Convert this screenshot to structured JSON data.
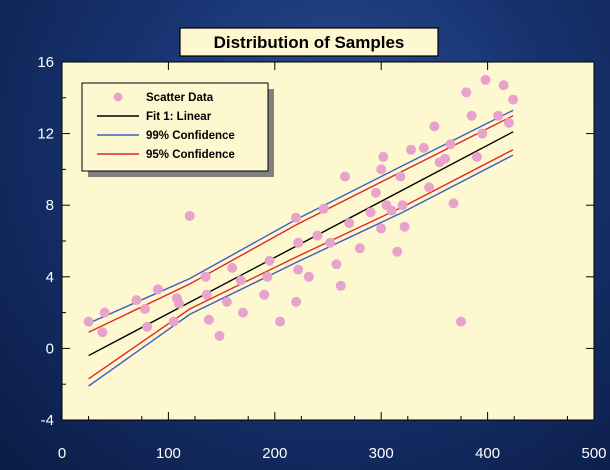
{
  "chart_data": {
    "type": "scatter",
    "title": "Distribution of Samples",
    "xlabel": "",
    "ylabel": "",
    "xlim": [
      0,
      500
    ],
    "ylim": [
      -4,
      16
    ],
    "x_ticks": [
      0,
      100,
      200,
      300,
      400,
      500
    ],
    "y_ticks": [
      -4,
      0,
      4,
      8,
      12,
      16
    ],
    "grid": false,
    "legend_position": "top-left",
    "colors": {
      "plot_bg": "#fdf8d0",
      "points": "#e8a3cc",
      "fit": "#000000",
      "conf99": "#3b5fc0",
      "conf95": "#e02828"
    },
    "series": [
      {
        "name": "Scatter Data",
        "kind": "points",
        "points": [
          [
            25,
            1.5
          ],
          [
            38,
            0.9
          ],
          [
            40,
            2.0
          ],
          [
            70,
            2.7
          ],
          [
            78,
            2.2
          ],
          [
            80,
            1.2
          ],
          [
            90,
            3.3
          ],
          [
            105,
            1.5
          ],
          [
            108,
            2.8
          ],
          [
            110,
            2.5
          ],
          [
            120,
            7.4
          ],
          [
            135,
            4.0
          ],
          [
            136,
            3.0
          ],
          [
            138,
            1.6
          ],
          [
            148,
            0.7
          ],
          [
            155,
            2.6
          ],
          [
            160,
            4.5
          ],
          [
            168,
            3.8
          ],
          [
            170,
            2.0
          ],
          [
            190,
            3.0
          ],
          [
            193,
            4.0
          ],
          [
            195,
            4.9
          ],
          [
            205,
            1.5
          ],
          [
            220,
            7.3
          ],
          [
            220,
            2.6
          ],
          [
            222,
            4.4
          ],
          [
            222,
            5.9
          ],
          [
            232,
            4.0
          ],
          [
            240,
            6.3
          ],
          [
            246,
            7.8
          ],
          [
            252,
            5.9
          ],
          [
            258,
            4.7
          ],
          [
            262,
            3.5
          ],
          [
            266,
            9.6
          ],
          [
            270,
            7.0
          ],
          [
            280,
            5.6
          ],
          [
            290,
            7.6
          ],
          [
            295,
            8.7
          ],
          [
            300,
            10.0
          ],
          [
            300,
            6.7
          ],
          [
            302,
            10.7
          ],
          [
            305,
            8.0
          ],
          [
            310,
            7.7
          ],
          [
            315,
            5.4
          ],
          [
            318,
            9.6
          ],
          [
            320,
            8.0
          ],
          [
            322,
            6.8
          ],
          [
            328,
            11.1
          ],
          [
            340,
            11.2
          ],
          [
            345,
            9.0
          ],
          [
            350,
            12.4
          ],
          [
            355,
            10.4
          ],
          [
            360,
            10.6
          ],
          [
            365,
            11.4
          ],
          [
            368,
            8.1
          ],
          [
            375,
            1.5
          ],
          [
            380,
            14.3
          ],
          [
            385,
            13.0
          ],
          [
            390,
            10.7
          ],
          [
            395,
            12.0
          ],
          [
            398,
            15.0
          ],
          [
            410,
            13.0
          ],
          [
            415,
            14.7
          ],
          [
            420,
            12.6
          ],
          [
            424,
            13.9
          ]
        ]
      },
      {
        "name": "Fit 1: Linear",
        "kind": "line",
        "x": [
          25,
          424
        ],
        "y": [
          -0.4,
          12.1
        ]
      },
      {
        "name": "99% Confidence",
        "kind": "band",
        "x": [
          25,
          120,
          220,
          320,
          424
        ],
        "upper": [
          1.4,
          3.9,
          7.2,
          10.2,
          13.3
        ],
        "lower": [
          -2.1,
          1.9,
          4.8,
          7.6,
          10.8
        ]
      },
      {
        "name": "95% Confidence",
        "kind": "band",
        "x": [
          25,
          120,
          220,
          320,
          424
        ],
        "upper": [
          0.9,
          3.6,
          6.9,
          9.9,
          13.0
        ],
        "lower": [
          -1.7,
          2.2,
          5.1,
          7.9,
          11.1
        ]
      }
    ]
  }
}
